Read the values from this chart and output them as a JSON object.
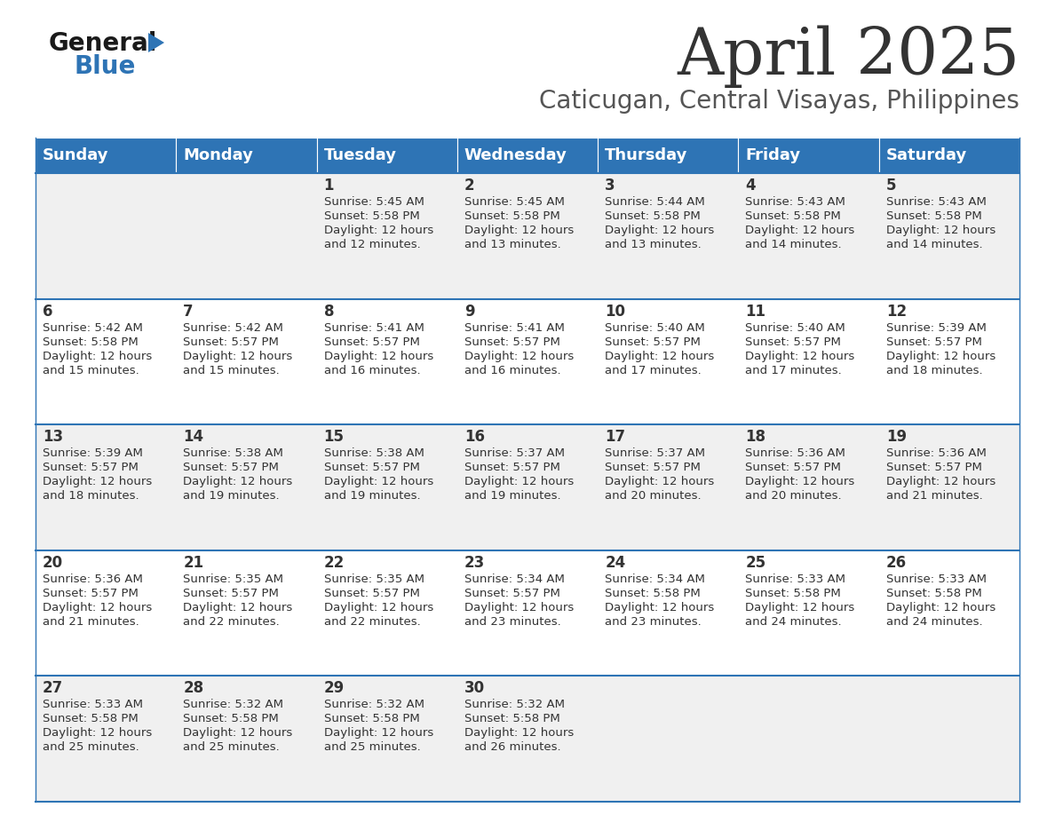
{
  "title": "April 2025",
  "subtitle": "Caticugan, Central Visayas, Philippines",
  "days_of_week": [
    "Sunday",
    "Monday",
    "Tuesday",
    "Wednesday",
    "Thursday",
    "Friday",
    "Saturday"
  ],
  "header_bg": "#2e74b5",
  "header_text": "#ffffff",
  "row_bg_odd": "#f0f0f0",
  "row_bg_even": "#ffffff",
  "cell_text": "#333333",
  "title_color": "#333333",
  "subtitle_color": "#555555",
  "divider_color": "#2e74b5",
  "logo_general_color": "#1a1a1a",
  "logo_blue_color": "#2e74b5",
  "calendar": [
    [
      {
        "day": "",
        "sunrise": "",
        "sunset": "",
        "daylight": ""
      },
      {
        "day": "",
        "sunrise": "",
        "sunset": "",
        "daylight": ""
      },
      {
        "day": "1",
        "sunrise": "5:45 AM",
        "sunset": "5:58 PM",
        "daylight": "12 hours and 12 minutes."
      },
      {
        "day": "2",
        "sunrise": "5:45 AM",
        "sunset": "5:58 PM",
        "daylight": "12 hours and 13 minutes."
      },
      {
        "day": "3",
        "sunrise": "5:44 AM",
        "sunset": "5:58 PM",
        "daylight": "12 hours and 13 minutes."
      },
      {
        "day": "4",
        "sunrise": "5:43 AM",
        "sunset": "5:58 PM",
        "daylight": "12 hours and 14 minutes."
      },
      {
        "day": "5",
        "sunrise": "5:43 AM",
        "sunset": "5:58 PM",
        "daylight": "12 hours and 14 minutes."
      }
    ],
    [
      {
        "day": "6",
        "sunrise": "5:42 AM",
        "sunset": "5:58 PM",
        "daylight": "12 hours and 15 minutes."
      },
      {
        "day": "7",
        "sunrise": "5:42 AM",
        "sunset": "5:57 PM",
        "daylight": "12 hours and 15 minutes."
      },
      {
        "day": "8",
        "sunrise": "5:41 AM",
        "sunset": "5:57 PM",
        "daylight": "12 hours and 16 minutes."
      },
      {
        "day": "9",
        "sunrise": "5:41 AM",
        "sunset": "5:57 PM",
        "daylight": "12 hours and 16 minutes."
      },
      {
        "day": "10",
        "sunrise": "5:40 AM",
        "sunset": "5:57 PM",
        "daylight": "12 hours and 17 minutes."
      },
      {
        "day": "11",
        "sunrise": "5:40 AM",
        "sunset": "5:57 PM",
        "daylight": "12 hours and 17 minutes."
      },
      {
        "day": "12",
        "sunrise": "5:39 AM",
        "sunset": "5:57 PM",
        "daylight": "12 hours and 18 minutes."
      }
    ],
    [
      {
        "day": "13",
        "sunrise": "5:39 AM",
        "sunset": "5:57 PM",
        "daylight": "12 hours and 18 minutes."
      },
      {
        "day": "14",
        "sunrise": "5:38 AM",
        "sunset": "5:57 PM",
        "daylight": "12 hours and 19 minutes."
      },
      {
        "day": "15",
        "sunrise": "5:38 AM",
        "sunset": "5:57 PM",
        "daylight": "12 hours and 19 minutes."
      },
      {
        "day": "16",
        "sunrise": "5:37 AM",
        "sunset": "5:57 PM",
        "daylight": "12 hours and 19 minutes."
      },
      {
        "day": "17",
        "sunrise": "5:37 AM",
        "sunset": "5:57 PM",
        "daylight": "12 hours and 20 minutes."
      },
      {
        "day": "18",
        "sunrise": "5:36 AM",
        "sunset": "5:57 PM",
        "daylight": "12 hours and 20 minutes."
      },
      {
        "day": "19",
        "sunrise": "5:36 AM",
        "sunset": "5:57 PM",
        "daylight": "12 hours and 21 minutes."
      }
    ],
    [
      {
        "day": "20",
        "sunrise": "5:36 AM",
        "sunset": "5:57 PM",
        "daylight": "12 hours and 21 minutes."
      },
      {
        "day": "21",
        "sunrise": "5:35 AM",
        "sunset": "5:57 PM",
        "daylight": "12 hours and 22 minutes."
      },
      {
        "day": "22",
        "sunrise": "5:35 AM",
        "sunset": "5:57 PM",
        "daylight": "12 hours and 22 minutes."
      },
      {
        "day": "23",
        "sunrise": "5:34 AM",
        "sunset": "5:57 PM",
        "daylight": "12 hours and 23 minutes."
      },
      {
        "day": "24",
        "sunrise": "5:34 AM",
        "sunset": "5:58 PM",
        "daylight": "12 hours and 23 minutes."
      },
      {
        "day": "25",
        "sunrise": "5:33 AM",
        "sunset": "5:58 PM",
        "daylight": "12 hours and 24 minutes."
      },
      {
        "day": "26",
        "sunrise": "5:33 AM",
        "sunset": "5:58 PM",
        "daylight": "12 hours and 24 minutes."
      }
    ],
    [
      {
        "day": "27",
        "sunrise": "5:33 AM",
        "sunset": "5:58 PM",
        "daylight": "12 hours and 25 minutes."
      },
      {
        "day": "28",
        "sunrise": "5:32 AM",
        "sunset": "5:58 PM",
        "daylight": "12 hours and 25 minutes."
      },
      {
        "day": "29",
        "sunrise": "5:32 AM",
        "sunset": "5:58 PM",
        "daylight": "12 hours and 25 minutes."
      },
      {
        "day": "30",
        "sunrise": "5:32 AM",
        "sunset": "5:58 PM",
        "daylight": "12 hours and 26 minutes."
      },
      {
        "day": "",
        "sunrise": "",
        "sunset": "",
        "daylight": ""
      },
      {
        "day": "",
        "sunrise": "",
        "sunset": "",
        "daylight": ""
      },
      {
        "day": "",
        "sunrise": "",
        "sunset": "",
        "daylight": ""
      }
    ]
  ]
}
